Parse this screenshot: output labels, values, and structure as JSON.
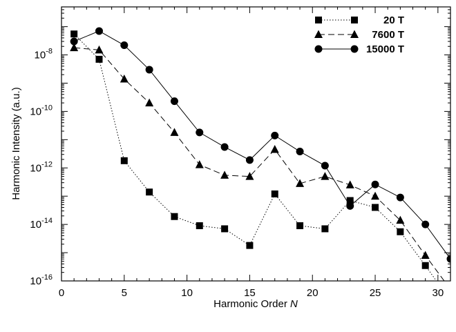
{
  "chart_data": {
    "type": "line",
    "xlabel": "Harmonic Order",
    "xlabel_var": "N",
    "ylabel": "Harmonic Intensity (a.u.)",
    "xlim": [
      0,
      31
    ],
    "ylim": [
      1e-16,
      5e-07
    ],
    "yscale": "log",
    "x_ticks": [
      0,
      5,
      10,
      15,
      20,
      25,
      30
    ],
    "x_tick_labels": [
      "0",
      "5",
      "10",
      "15",
      "20",
      "25",
      "30"
    ],
    "y_ticks": [
      {
        "value": 1e-08,
        "mantissa": "10",
        "exp": "-8"
      },
      {
        "value": 1e-10,
        "mantissa": "10",
        "exp": "-10"
      },
      {
        "value": 1e-12,
        "mantissa": "10",
        "exp": "-12"
      },
      {
        "value": 1e-14,
        "mantissa": "10",
        "exp": "-14"
      },
      {
        "value": 1e-16,
        "mantissa": "10",
        "exp": "-16"
      }
    ],
    "legend_position": "top-right",
    "x": [
      1,
      3,
      5,
      7,
      9,
      11,
      13,
      15,
      17,
      19,
      21,
      23,
      25,
      27,
      29,
      31
    ],
    "series": [
      {
        "name": "20 T",
        "marker": "square",
        "line": "dotted",
        "values": [
          5.5e-08,
          7e-09,
          1.8e-12,
          1.4e-13,
          1.9e-14,
          9e-15,
          7e-15,
          1.8e-15,
          1.2e-13,
          9e-15,
          7e-15,
          7e-14,
          4e-14,
          5.5e-15,
          3.5e-16,
          2e-17
        ]
      },
      {
        "name": "7600 T",
        "marker": "triangle",
        "line": "dashed",
        "values": [
          1.8e-08,
          1.5e-08,
          1.4e-09,
          2e-10,
          1.8e-11,
          1.3e-12,
          5.5e-13,
          5e-13,
          4.5e-12,
          2.8e-13,
          5e-13,
          2.5e-13,
          1e-13,
          1.4e-14,
          8e-16,
          5e-17
        ]
      },
      {
        "name": "15000 T",
        "marker": "circle",
        "line": "solid",
        "values": [
          3e-08,
          7e-08,
          2.2e-08,
          3e-09,
          2.3e-10,
          1.8e-11,
          5.5e-12,
          1.9e-12,
          1.4e-11,
          3.8e-12,
          1.2e-12,
          4.5e-14,
          2.6e-13,
          9e-14,
          1e-14,
          6e-16
        ]
      }
    ]
  }
}
